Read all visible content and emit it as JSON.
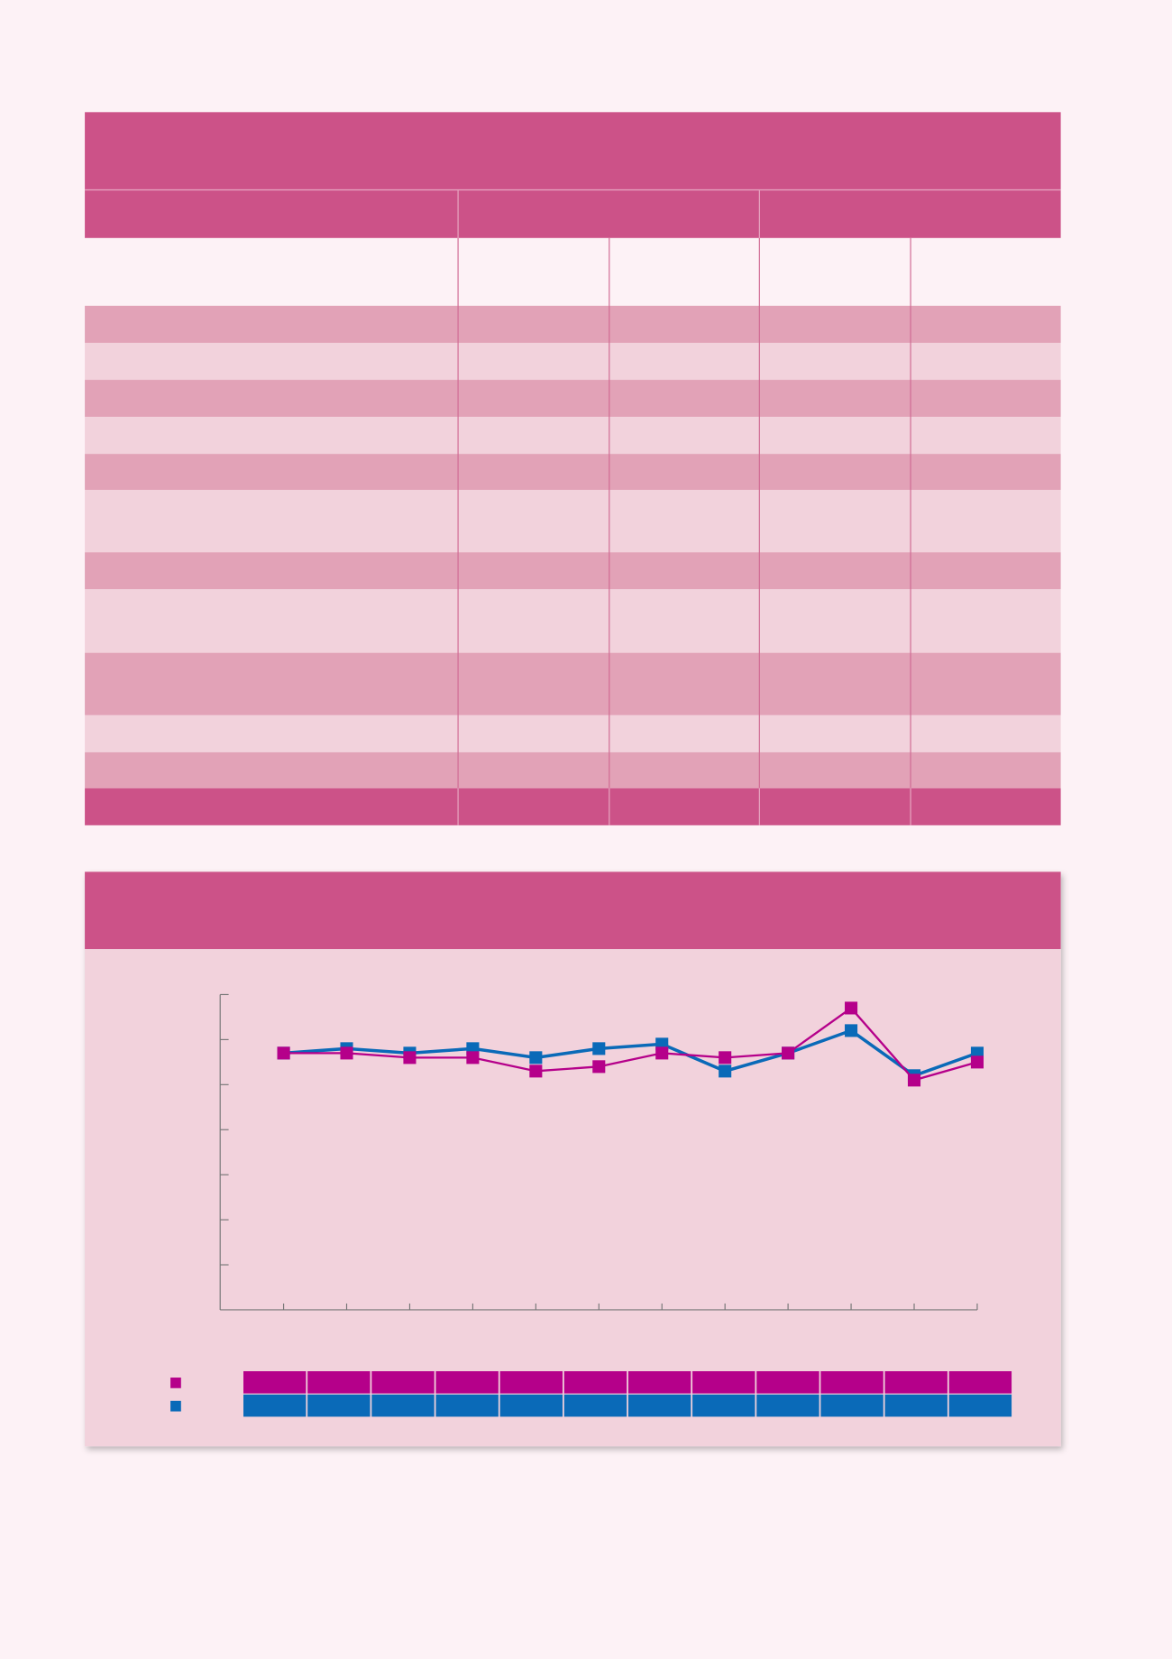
{
  "chart_data": {
    "type": "line",
    "categories": [
      null,
      null,
      null,
      null,
      null,
      null,
      null,
      null,
      null,
      null,
      null,
      null
    ],
    "series": [
      {
        "color": "#b5008a",
        "values": [
          5.7,
          5.7,
          5.6,
          5.6,
          5.3,
          5.4,
          5.7,
          5.6,
          5.7,
          6.7,
          5.1,
          5.5
        ]
      },
      {
        "color": "#0a6ab8",
        "values": [
          5.7,
          5.8,
          5.7,
          5.8,
          5.6,
          5.8,
          5.9,
          5.3,
          5.7,
          6.2,
          5.2,
          5.7
        ]
      }
    ],
    "ylim": [
      0,
      7
    ],
    "yticks": [
      1,
      2,
      3,
      4,
      5,
      6,
      7
    ]
  }
}
